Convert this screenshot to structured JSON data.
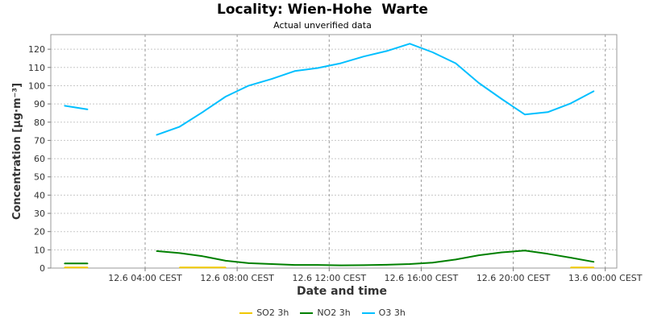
{
  "chart_data": {
    "type": "line",
    "title": "Locality: Wien-Hohe  Warte",
    "subtitle": "Actual unverified data",
    "xlabel": "Date and time",
    "ylabel": "Concentration [µg·m⁻³]",
    "ylim": [
      0,
      128
    ],
    "yticks": [
      0,
      10,
      20,
      30,
      40,
      50,
      60,
      70,
      80,
      90,
      100,
      110,
      120
    ],
    "x_tick_hours": [
      4,
      8,
      12,
      16,
      20,
      24
    ],
    "x_tick_labels": [
      "12.6 04:00 CEST",
      "12.6 08:00 CEST",
      "12.6 12:00 CEST",
      "12.6 16:00 CEST",
      "12.6 20:00 CEST",
      "13.6 00:00 CEST"
    ],
    "xlim_hours": [
      -0.1,
      24.5
    ],
    "x_hours": [
      0.5,
      1.5,
      2.5,
      3.5,
      4.5,
      5.5,
      6.5,
      7.5,
      8.5,
      9.5,
      10.5,
      11.5,
      12.5,
      13.5,
      14.5,
      15.5,
      16.5,
      17.5,
      18.5,
      19.5,
      20.5,
      21.5,
      22.5,
      23.5
    ],
    "grid": true,
    "legend_position": "bottom-center",
    "series": [
      {
        "name": "SO2 3h",
        "color": "#f0c800",
        "values": [
          0.3,
          0.3,
          null,
          null,
          null,
          0.3,
          0.3,
          0.3,
          null,
          null,
          null,
          null,
          null,
          null,
          null,
          null,
          null,
          null,
          null,
          null,
          null,
          null,
          0.3,
          0.3
        ]
      },
      {
        "name": "NO2 3h",
        "color": "#008000",
        "values": [
          2.5,
          2.5,
          null,
          null,
          9.3,
          8.2,
          6.5,
          4.0,
          2.7,
          2.2,
          1.7,
          1.7,
          1.5,
          1.6,
          1.8,
          2.2,
          3.0,
          4.7,
          7.0,
          8.6,
          9.6,
          7.8,
          5.7,
          3.4
        ]
      },
      {
        "name": "O3 3h",
        "color": "#00bfff",
        "values": [
          89,
          87,
          null,
          null,
          73,
          77.5,
          85.5,
          94,
          100,
          103.7,
          108,
          109.7,
          112.3,
          116,
          119,
          123,
          118.3,
          112.3,
          101.5,
          92.7,
          84.2,
          85.5,
          90.3,
          97
        ]
      }
    ]
  }
}
